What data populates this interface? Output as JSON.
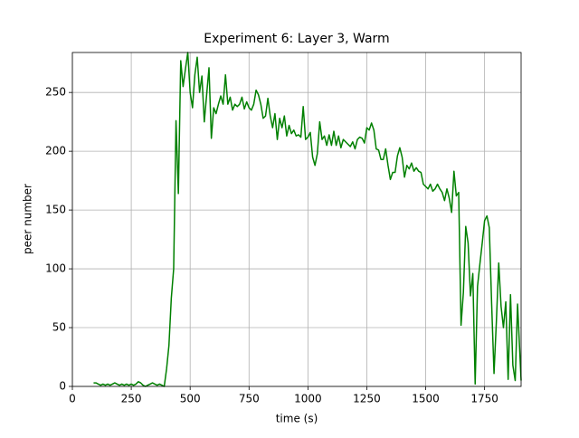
{
  "chart_data": {
    "type": "line",
    "title": "Experiment 6: Layer 3, Warm",
    "x_label": "time (s)",
    "y_label": "peer number",
    "color": "#008000",
    "grid": true,
    "xlim": [
      0,
      1905
    ],
    "ylim": [
      0,
      284
    ],
    "xticks": [
      0,
      250,
      500,
      750,
      1000,
      1250,
      1500,
      1750
    ],
    "yticks": [
      0,
      50,
      100,
      150,
      200,
      250
    ],
    "x": [
      90,
      100,
      110,
      120,
      130,
      140,
      150,
      160,
      170,
      180,
      190,
      200,
      210,
      220,
      230,
      240,
      250,
      260,
      270,
      280,
      290,
      300,
      310,
      320,
      330,
      340,
      350,
      360,
      370,
      380,
      390,
      400,
      410,
      420,
      430,
      440,
      450,
      460,
      470,
      480,
      490,
      500,
      510,
      520,
      530,
      540,
      550,
      560,
      570,
      580,
      590,
      600,
      610,
      620,
      630,
      640,
      650,
      660,
      670,
      680,
      690,
      700,
      710,
      720,
      730,
      740,
      750,
      760,
      770,
      780,
      790,
      800,
      810,
      820,
      830,
      840,
      850,
      860,
      870,
      880,
      890,
      900,
      910,
      920,
      930,
      940,
      950,
      960,
      970,
      980,
      990,
      1000,
      1010,
      1020,
      1030,
      1040,
      1050,
      1060,
      1070,
      1080,
      1090,
      1100,
      1110,
      1120,
      1130,
      1140,
      1150,
      1160,
      1170,
      1180,
      1190,
      1200,
      1210,
      1220,
      1230,
      1240,
      1250,
      1260,
      1270,
      1280,
      1290,
      1300,
      1310,
      1320,
      1330,
      1340,
      1350,
      1360,
      1370,
      1380,
      1390,
      1400,
      1410,
      1420,
      1430,
      1440,
      1450,
      1460,
      1470,
      1480,
      1490,
      1500,
      1510,
      1520,
      1530,
      1540,
      1550,
      1560,
      1570,
      1580,
      1590,
      1600,
      1610,
      1620,
      1630,
      1640,
      1650,
      1660,
      1670,
      1680,
      1690,
      1700,
      1710,
      1720,
      1730,
      1740,
      1750,
      1760,
      1770,
      1780,
      1790,
      1800,
      1810,
      1820,
      1830,
      1840,
      1850,
      1860,
      1870,
      1880,
      1890,
      1905
    ],
    "values": [
      3,
      3,
      2,
      1,
      2,
      1,
      2,
      1,
      2,
      3,
      2,
      1,
      2,
      1,
      2,
      1,
      2,
      1,
      2,
      4,
      3,
      1,
      0,
      1,
      2,
      3,
      2,
      1,
      2,
      1,
      0,
      15,
      35,
      75,
      100,
      226,
      164,
      277,
      255,
      270,
      284,
      250,
      237,
      265,
      280,
      250,
      264,
      225,
      248,
      271,
      211,
      237,
      232,
      240,
      247,
      240,
      265,
      240,
      246,
      235,
      240,
      238,
      240,
      246,
      236,
      242,
      237,
      235,
      240,
      252,
      248,
      240,
      228,
      230,
      245,
      230,
      220,
      232,
      210,
      228,
      220,
      230,
      213,
      222,
      215,
      218,
      213,
      214,
      212,
      238,
      210,
      212,
      216,
      195,
      188,
      198,
      225,
      210,
      213,
      205,
      214,
      205,
      217,
      205,
      213,
      203,
      210,
      208,
      206,
      204,
      208,
      202,
      210,
      212,
      211,
      207,
      220,
      218,
      224,
      218,
      202,
      201,
      193,
      193,
      202,
      188,
      176,
      182,
      182,
      196,
      203,
      195,
      178,
      188,
      185,
      190,
      183,
      186,
      183,
      182,
      172,
      170,
      168,
      172,
      166,
      168,
      172,
      168,
      165,
      158,
      168,
      160,
      148,
      183,
      162,
      165,
      52,
      80,
      136,
      122,
      77,
      96,
      2,
      85,
      104,
      122,
      141,
      145,
      135,
      70,
      11,
      55,
      105,
      68,
      50,
      72,
      6,
      78,
      18,
      5,
      70,
      5
    ]
  }
}
